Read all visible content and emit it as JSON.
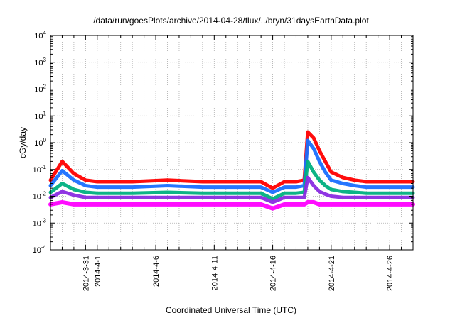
{
  "chart_data": {
    "type": "line",
    "title": "/data/run/goesPlots/archive/2014-04-28/flux/../bryn/31daysEarthData.plot",
    "xlabel": "Coordinated Universal Time (UTC)",
    "ylabel": "cGy/day",
    "yscale": "log",
    "ylim": [
      0.0001,
      10000
    ],
    "xlim": [
      "2014-03-28",
      "2014-04-28"
    ],
    "grid": true,
    "y_ticks": [
      {
        "base": "10",
        "exp": "-4",
        "value": 0.0001
      },
      {
        "base": "10",
        "exp": "-3",
        "value": 0.001
      },
      {
        "base": "10",
        "exp": "-2",
        "value": 0.01
      },
      {
        "base": "10",
        "exp": "-1",
        "value": 0.1
      },
      {
        "base": "10",
        "exp": "0",
        "value": 1
      },
      {
        "base": "10",
        "exp": "1",
        "value": 10
      },
      {
        "base": "10",
        "exp": "2",
        "value": 100
      },
      {
        "base": "10",
        "exp": "3",
        "value": 1000
      },
      {
        "base": "10",
        "exp": "4",
        "value": 10000
      }
    ],
    "x_ticks": [
      {
        "label": "2014-3-31",
        "date": "2014-03-31"
      },
      {
        "label": "2014-4-1",
        "date": "2014-04-01"
      },
      {
        "label": "2014-4-6",
        "date": "2014-04-06"
      },
      {
        "label": "2014-4-11",
        "date": "2014-04-11"
      },
      {
        "label": "2014-4-16",
        "date": "2014-04-16"
      },
      {
        "label": "2014-4-21",
        "date": "2014-04-21"
      },
      {
        "label": "2014-4-26",
        "date": "2014-04-26"
      }
    ],
    "x_minor_ticks": [
      "2014-03-29",
      "2014-03-30",
      "2014-04-02",
      "2014-04-03",
      "2014-04-04",
      "2014-04-05",
      "2014-04-07",
      "2014-04-08",
      "2014-04-09",
      "2014-04-10",
      "2014-04-12",
      "2014-04-13",
      "2014-04-14",
      "2014-04-15",
      "2014-04-17",
      "2014-04-18",
      "2014-04-19",
      "2014-04-20",
      "2014-04-22",
      "2014-04-23",
      "2014-04-24",
      "2014-04-25",
      "2014-04-27",
      "2014-04-28"
    ],
    "series": [
      {
        "color": "#ff0000",
        "x": [
          "2014-03-28",
          "2014-03-29",
          "2014-03-30",
          "2014-03-31",
          "2014-04-01",
          "2014-04-04",
          "2014-04-07",
          "2014-04-10",
          "2014-04-13",
          "2014-04-15",
          "2014-04-16",
          "2014-04-17",
          "2014-04-18",
          "2014-04-18.7",
          "2014-04-19",
          "2014-04-19.5",
          "2014-04-20",
          "2014-04-20.5",
          "2014-04-21",
          "2014-04-22",
          "2014-04-23",
          "2014-04-24",
          "2014-04-26",
          "2014-04-28"
        ],
        "values": [
          0.04,
          0.2,
          0.07,
          0.04,
          0.035,
          0.035,
          0.04,
          0.035,
          0.035,
          0.035,
          0.02,
          0.035,
          0.035,
          0.04,
          2.5,
          1.5,
          0.5,
          0.2,
          0.08,
          0.05,
          0.04,
          0.035,
          0.035,
          0.035
        ]
      },
      {
        "color": "#1a6fff",
        "x": [
          "2014-03-28",
          "2014-03-29",
          "2014-03-30",
          "2014-03-31",
          "2014-04-01",
          "2014-04-04",
          "2014-04-07",
          "2014-04-10",
          "2014-04-13",
          "2014-04-15",
          "2014-04-16",
          "2014-04-17",
          "2014-04-18",
          "2014-04-18.7",
          "2014-04-19",
          "2014-04-19.5",
          "2014-04-20",
          "2014-04-20.5",
          "2014-04-21",
          "2014-04-22",
          "2014-04-23",
          "2014-04-24",
          "2014-04-26",
          "2014-04-28"
        ],
        "values": [
          0.025,
          0.09,
          0.04,
          0.025,
          0.022,
          0.022,
          0.025,
          0.022,
          0.022,
          0.022,
          0.014,
          0.022,
          0.022,
          0.025,
          1.2,
          0.6,
          0.2,
          0.08,
          0.04,
          0.03,
          0.025,
          0.022,
          0.022,
          0.022
        ]
      },
      {
        "color": "#00b080",
        "x": [
          "2014-03-28",
          "2014-03-29",
          "2014-03-30",
          "2014-03-31",
          "2014-04-01",
          "2014-04-04",
          "2014-04-07",
          "2014-04-10",
          "2014-04-13",
          "2014-04-15",
          "2014-04-16",
          "2014-04-17",
          "2014-04-18",
          "2014-04-18.7",
          "2014-04-19",
          "2014-04-19.5",
          "2014-04-20",
          "2014-04-20.5",
          "2014-04-21",
          "2014-04-22",
          "2014-04-23",
          "2014-04-24",
          "2014-04-26",
          "2014-04-28"
        ],
        "values": [
          0.014,
          0.03,
          0.018,
          0.014,
          0.013,
          0.013,
          0.014,
          0.013,
          0.013,
          0.013,
          0.008,
          0.013,
          0.013,
          0.014,
          0.2,
          0.08,
          0.04,
          0.025,
          0.018,
          0.015,
          0.014,
          0.013,
          0.013,
          0.013
        ]
      },
      {
        "color": "#8a2be2",
        "x": [
          "2014-03-28",
          "2014-03-29",
          "2014-03-30",
          "2014-03-31",
          "2014-04-01",
          "2014-04-04",
          "2014-04-07",
          "2014-04-10",
          "2014-04-13",
          "2014-04-15",
          "2014-04-16",
          "2014-04-17",
          "2014-04-18",
          "2014-04-18.7",
          "2014-04-19",
          "2014-04-19.5",
          "2014-04-20",
          "2014-04-20.5",
          "2014-04-21",
          "2014-04-22",
          "2014-04-23",
          "2014-04-24",
          "2014-04-26",
          "2014-04-28"
        ],
        "values": [
          0.009,
          0.015,
          0.011,
          0.009,
          0.009,
          0.009,
          0.009,
          0.009,
          0.009,
          0.009,
          0.006,
          0.009,
          0.009,
          0.009,
          0.05,
          0.025,
          0.015,
          0.012,
          0.01,
          0.009,
          0.009,
          0.009,
          0.009,
          0.009
        ]
      },
      {
        "color": "#ff00ff",
        "x": [
          "2014-03-28",
          "2014-03-29",
          "2014-03-30",
          "2014-03-31",
          "2014-04-01",
          "2014-04-04",
          "2014-04-07",
          "2014-04-10",
          "2014-04-13",
          "2014-04-15",
          "2014-04-16",
          "2014-04-17",
          "2014-04-18",
          "2014-04-18.7",
          "2014-04-19",
          "2014-04-19.5",
          "2014-04-20",
          "2014-04-20.5",
          "2014-04-21",
          "2014-04-22",
          "2014-04-23",
          "2014-04-24",
          "2014-04-26",
          "2014-04-28"
        ],
        "values": [
          0.005,
          0.006,
          0.005,
          0.005,
          0.005,
          0.005,
          0.005,
          0.005,
          0.005,
          0.005,
          0.0035,
          0.005,
          0.005,
          0.005,
          0.006,
          0.006,
          0.005,
          0.005,
          0.005,
          0.005,
          0.005,
          0.005,
          0.005,
          0.005
        ]
      }
    ]
  }
}
